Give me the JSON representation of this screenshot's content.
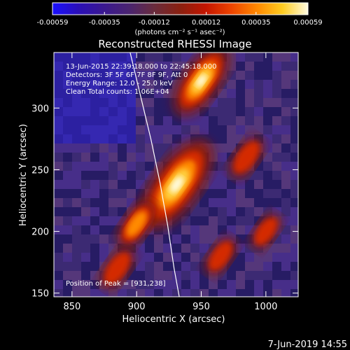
{
  "chart_data": {
    "type": "heatmap",
    "title": "Reconstructed RHESSI Image",
    "xlabel": "Heliocentric X (arcsec)",
    "ylabel": "Heliocentric Y (arcsec)",
    "xlim": [
      836,
      1025
    ],
    "ylim": [
      147,
      345
    ],
    "x_ticks": [
      850,
      900,
      950,
      1000
    ],
    "y_ticks": [
      150,
      200,
      250,
      300
    ],
    "colorbar": {
      "min": -0.00059,
      "max": 0.00059,
      "tick_values": [
        -0.00059,
        -0.00035,
        -0.00012,
        0.00012,
        0.00035,
        0.00059
      ],
      "tick_labels": [
        "-0.00059",
        "-0.00035",
        "-0.00012",
        "0.00012",
        "0.00035",
        "0.00059"
      ],
      "unit_label": "(photons cm⁻² s⁻¹ asec⁻²)",
      "colors": [
        "#1a10ff",
        "#2a0fb8",
        "#3a1890",
        "#4a2470",
        "#6a2c3c",
        "#8a2010",
        "#c41500",
        "#ee4400",
        "#ff8800",
        "#ffcc20",
        "#fffbe0"
      ]
    },
    "annotations": [
      "13-Jun-2015 22:39:18.000 to 22:45:18.000",
      "Detectors: 3F 5F 6F 7F 8F 9F, Att 0",
      "Energy Range: 12.0 - 25.0 keV",
      "Clean     Total counts: 1.06E+04"
    ],
    "peak_label": "Position of Peak = [931,238]",
    "peak": [
      931,
      238
    ],
    "limb_curve": {
      "x": [
        895,
        903,
        911,
        918,
        924,
        929,
        933
      ],
      "y": [
        345,
        310,
        275,
        240,
        205,
        170,
        147
      ]
    },
    "sources": [
      {
        "x": 931,
        "y": 238,
        "intensity": 0.00059
      },
      {
        "x": 950,
        "y": 322,
        "intensity": 0.0004
      },
      {
        "x": 900,
        "y": 206,
        "intensity": 0.0002
      },
      {
        "x": 885,
        "y": 170,
        "intensity": 0.00015
      },
      {
        "x": 985,
        "y": 260,
        "intensity": 0.00015
      },
      {
        "x": 965,
        "y": 180,
        "intensity": 0.00012
      },
      {
        "x": 1000,
        "y": 200,
        "intensity": 0.0001
      }
    ]
  },
  "footer": {
    "date": "7-Jun-2019 14:55"
  }
}
